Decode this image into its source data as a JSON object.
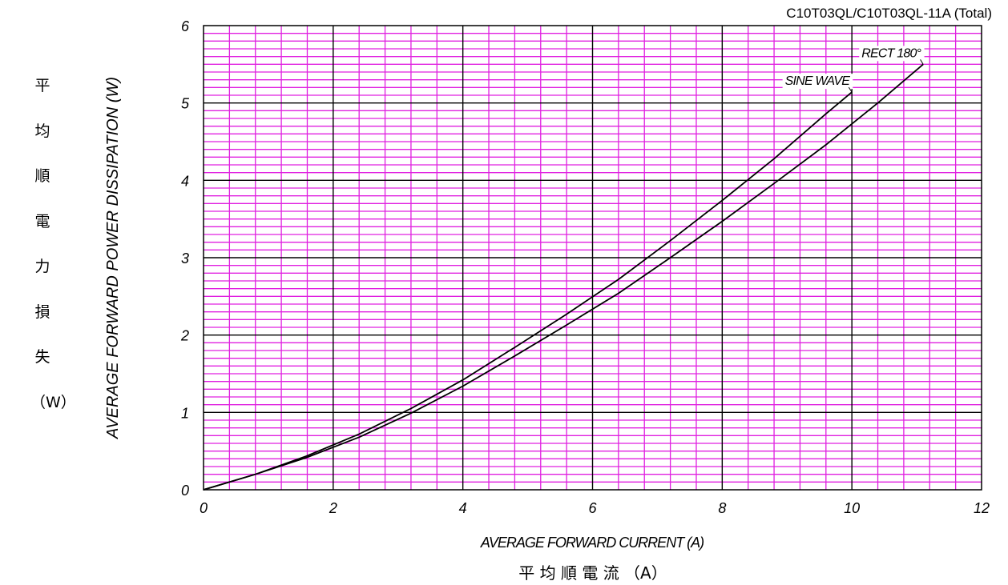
{
  "chart_data": {
    "type": "line",
    "title": "C10T03QL/C10T03QL-11A (Total)",
    "xlabel": "AVERAGE FORWARD CURRENT (A)",
    "xlabel_cjk": "平 均 順 電 流 （A）",
    "ylabel": "AVERAGE FORWARD POWER DISSIPATION (W)",
    "ylabel_cjk": [
      "平",
      "均",
      "順",
      "電",
      "力",
      "損",
      "失",
      "（W）"
    ],
    "xlim": [
      0,
      12
    ],
    "ylim": [
      0,
      6
    ],
    "xticks": [
      0,
      2,
      4,
      6,
      8,
      10,
      12
    ],
    "yticks": [
      0,
      1,
      2,
      3,
      4,
      5,
      6
    ],
    "grid": true,
    "grid_color": "#e020e0",
    "series": [
      {
        "name": "SINE WAVE",
        "x": [
          0,
          0.8,
          1.6,
          2.4,
          3.2,
          4.0,
          4.8,
          5.6,
          6.4,
          7.2,
          8.0,
          8.8,
          9.6,
          10.0
        ],
        "y": [
          0,
          0.2,
          0.44,
          0.72,
          1.05,
          1.42,
          1.84,
          2.27,
          2.72,
          3.22,
          3.74,
          4.28,
          4.86,
          5.14
        ]
      },
      {
        "name": "RECT 180°",
        "x": [
          0,
          0.8,
          1.6,
          2.4,
          3.2,
          4.0,
          4.8,
          5.6,
          6.4,
          7.2,
          8.0,
          8.8,
          9.6,
          10.4,
          11.1
        ],
        "y": [
          0,
          0.2,
          0.42,
          0.68,
          0.99,
          1.34,
          1.73,
          2.13,
          2.54,
          3.0,
          3.47,
          3.96,
          4.46,
          5.0,
          5.5
        ]
      }
    ]
  }
}
